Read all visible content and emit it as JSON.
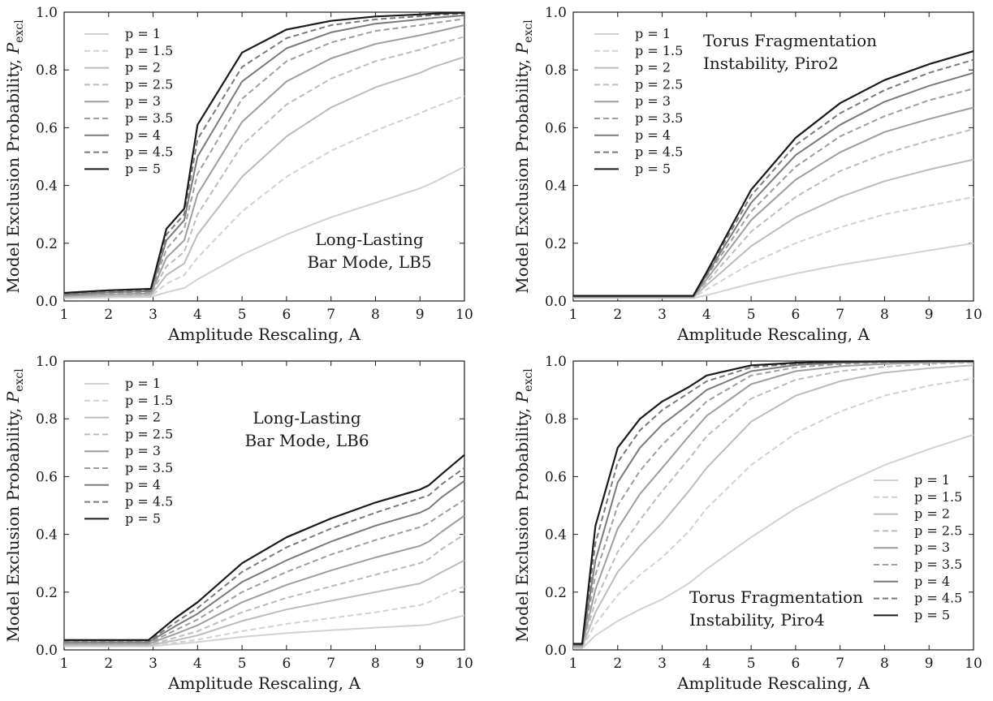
{
  "chart_data": [
    {
      "type": "line",
      "title": "",
      "annotation": [
        "Long-Lasting",
        "Bar Mode, LB5"
      ],
      "xlabel": "Amplitude Rescaling, A",
      "ylabel": "Model Exclusion Probability, ",
      "ylabel_symbol": "P",
      "ylabel_sub": "excl",
      "xlim": [
        1,
        10
      ],
      "ylim": [
        0.0,
        1.0
      ],
      "xticks": [
        "1",
        "2",
        "3",
        "4",
        "5",
        "6",
        "7",
        "8",
        "9",
        "10"
      ],
      "yticks": [
        "0.0",
        "0.2",
        "0.4",
        "0.6",
        "0.8",
        "1.0"
      ],
      "legend_position": "top-left",
      "x": [
        1,
        2,
        2.95,
        3.3,
        3.7,
        4,
        5,
        6,
        7,
        8,
        9,
        9.3,
        10
      ],
      "series": [
        {
          "name": "p = 1",
          "color": "#d2d2d2",
          "dash": "solid",
          "values": [
            0.01,
            0.012,
            0.014,
            0.03,
            0.045,
            0.075,
            0.16,
            0.23,
            0.29,
            0.34,
            0.39,
            0.41,
            0.465
          ]
        },
        {
          "name": "p = 1.5",
          "color": "#d2d2d2",
          "dash": "dashed",
          "values": [
            0.012,
            0.014,
            0.016,
            0.06,
            0.09,
            0.15,
            0.31,
            0.43,
            0.52,
            0.59,
            0.65,
            0.67,
            0.71
          ]
        },
        {
          "name": "p = 2",
          "color": "#bcbcbc",
          "dash": "solid",
          "values": [
            0.014,
            0.017,
            0.019,
            0.09,
            0.13,
            0.23,
            0.43,
            0.57,
            0.67,
            0.74,
            0.79,
            0.81,
            0.845
          ]
        },
        {
          "name": "p = 2.5",
          "color": "#bcbcbc",
          "dash": "dashed",
          "values": [
            0.016,
            0.02,
            0.022,
            0.12,
            0.17,
            0.3,
            0.54,
            0.68,
            0.77,
            0.83,
            0.87,
            0.885,
            0.915
          ]
        },
        {
          "name": "p = 3",
          "color": "#9e9e9e",
          "dash": "solid",
          "values": [
            0.018,
            0.023,
            0.026,
            0.15,
            0.21,
            0.37,
            0.62,
            0.76,
            0.84,
            0.89,
            0.92,
            0.93,
            0.955
          ]
        },
        {
          "name": "p = 3.5",
          "color": "#9e9e9e",
          "dash": "dashed",
          "values": [
            0.02,
            0.026,
            0.03,
            0.18,
            0.25,
            0.44,
            0.7,
            0.83,
            0.895,
            0.935,
            0.955,
            0.962,
            0.977
          ]
        },
        {
          "name": "p = 4",
          "color": "#7a7a7a",
          "dash": "solid",
          "values": [
            0.022,
            0.03,
            0.034,
            0.21,
            0.28,
            0.5,
            0.76,
            0.875,
            0.93,
            0.96,
            0.975,
            0.98,
            0.989
          ]
        },
        {
          "name": "p = 4.5",
          "color": "#7a7a7a",
          "dash": "dashed",
          "values": [
            0.024,
            0.034,
            0.038,
            0.23,
            0.3,
            0.56,
            0.81,
            0.91,
            0.955,
            0.975,
            0.986,
            0.99,
            0.995
          ]
        },
        {
          "name": "p = 5",
          "color": "#1a1a1a",
          "dash": "solid",
          "values": [
            0.028,
            0.037,
            0.042,
            0.25,
            0.32,
            0.61,
            0.86,
            0.94,
            0.97,
            0.985,
            0.992,
            0.995,
            0.998
          ]
        }
      ]
    },
    {
      "type": "line",
      "title": "",
      "annotation": [
        "Torus Fragmentation",
        "Instability, Piro2"
      ],
      "xlabel": "Amplitude Rescaling, A",
      "ylabel": "Model Exclusion Probability, ",
      "ylabel_symbol": "P",
      "ylabel_sub": "excl",
      "xlim": [
        1,
        10
      ],
      "ylim": [
        0.0,
        1.0
      ],
      "xticks": [
        "1",
        "2",
        "3",
        "4",
        "5",
        "6",
        "7",
        "8",
        "9",
        "10"
      ],
      "yticks": [
        "0.0",
        "0.2",
        "0.4",
        "0.6",
        "0.8",
        "1.0"
      ],
      "legend_position": "top-left",
      "x": [
        1,
        3.7,
        4,
        5,
        6,
        7,
        8,
        9,
        10
      ],
      "series": [
        {
          "name": "p = 1",
          "color": "#d2d2d2",
          "dash": "solid",
          "values": [
            0.01,
            0.01,
            0.02,
            0.06,
            0.095,
            0.125,
            0.15,
            0.175,
            0.2
          ]
        },
        {
          "name": "p = 1.5",
          "color": "#d2d2d2",
          "dash": "dashed",
          "values": [
            0.011,
            0.011,
            0.04,
            0.13,
            0.2,
            0.255,
            0.3,
            0.33,
            0.36
          ]
        },
        {
          "name": "p = 2",
          "color": "#bcbcbc",
          "dash": "solid",
          "values": [
            0.012,
            0.012,
            0.055,
            0.19,
            0.29,
            0.36,
            0.415,
            0.455,
            0.49
          ]
        },
        {
          "name": "p = 2.5",
          "color": "#bcbcbc",
          "dash": "dashed",
          "values": [
            0.013,
            0.013,
            0.065,
            0.24,
            0.36,
            0.45,
            0.51,
            0.555,
            0.595
          ]
        },
        {
          "name": "p = 3",
          "color": "#9e9e9e",
          "dash": "solid",
          "values": [
            0.014,
            0.014,
            0.075,
            0.28,
            0.42,
            0.515,
            0.585,
            0.63,
            0.67
          ]
        },
        {
          "name": "p = 3.5",
          "color": "#9e9e9e",
          "dash": "dashed",
          "values": [
            0.015,
            0.015,
            0.085,
            0.31,
            0.465,
            0.57,
            0.64,
            0.695,
            0.735
          ]
        },
        {
          "name": "p = 4",
          "color": "#7a7a7a",
          "dash": "solid",
          "values": [
            0.016,
            0.016,
            0.09,
            0.34,
            0.505,
            0.61,
            0.69,
            0.745,
            0.79
          ]
        },
        {
          "name": "p = 4.5",
          "color": "#7a7a7a",
          "dash": "dashed",
          "values": [
            0.017,
            0.017,
            0.095,
            0.365,
            0.54,
            0.65,
            0.73,
            0.79,
            0.835
          ]
        },
        {
          "name": "p = 5",
          "color": "#1a1a1a",
          "dash": "solid",
          "values": [
            0.018,
            0.018,
            0.1,
            0.385,
            0.565,
            0.685,
            0.765,
            0.82,
            0.865
          ]
        }
      ]
    },
    {
      "type": "line",
      "title": "",
      "annotation": [
        "Long-Lasting",
        "Bar Mode, LB6"
      ],
      "xlabel": "Amplitude Rescaling, A",
      "ylabel": "Model Exclusion Probability, ",
      "ylabel_symbol": "P",
      "ylabel_sub": "excl",
      "xlim": [
        1,
        10
      ],
      "ylim": [
        0.0,
        1.0
      ],
      "xticks": [
        "1",
        "2",
        "3",
        "4",
        "5",
        "6",
        "7",
        "8",
        "9",
        "10"
      ],
      "yticks": [
        "0.0",
        "0.2",
        "0.4",
        "0.6",
        "0.8",
        "1.0"
      ],
      "legend_position": "top-left",
      "x": [
        1,
        2.9,
        3.5,
        4,
        5,
        6,
        7,
        8,
        9,
        9.2,
        9.5,
        10
      ],
      "series": [
        {
          "name": "p = 1",
          "color": "#d2d2d2",
          "dash": "solid",
          "values": [
            0.012,
            0.012,
            0.02,
            0.027,
            0.045,
            0.058,
            0.068,
            0.077,
            0.085,
            0.088,
            0.1,
            0.12
          ]
        },
        {
          "name": "p = 1.5",
          "color": "#d2d2d2",
          "dash": "dashed",
          "values": [
            0.014,
            0.014,
            0.025,
            0.035,
            0.065,
            0.09,
            0.11,
            0.13,
            0.155,
            0.165,
            0.19,
            0.22
          ]
        },
        {
          "name": "p = 2",
          "color": "#bcbcbc",
          "dash": "solid",
          "values": [
            0.016,
            0.016,
            0.033,
            0.05,
            0.1,
            0.14,
            0.17,
            0.2,
            0.23,
            0.245,
            0.27,
            0.31
          ]
        },
        {
          "name": "p = 2.5",
          "color": "#bcbcbc",
          "dash": "dashed",
          "values": [
            0.018,
            0.018,
            0.042,
            0.065,
            0.13,
            0.18,
            0.22,
            0.26,
            0.3,
            0.315,
            0.35,
            0.4
          ]
        },
        {
          "name": "p = 3",
          "color": "#9e9e9e",
          "dash": "solid",
          "values": [
            0.021,
            0.021,
            0.055,
            0.085,
            0.165,
            0.225,
            0.275,
            0.32,
            0.36,
            0.375,
            0.41,
            0.465
          ]
        },
        {
          "name": "p = 3.5",
          "color": "#9e9e9e",
          "dash": "dashed",
          "values": [
            0.024,
            0.024,
            0.068,
            0.105,
            0.2,
            0.27,
            0.33,
            0.38,
            0.425,
            0.44,
            0.47,
            0.52
          ]
        },
        {
          "name": "p = 4",
          "color": "#7a7a7a",
          "dash": "solid",
          "values": [
            0.027,
            0.027,
            0.082,
            0.125,
            0.235,
            0.31,
            0.375,
            0.43,
            0.475,
            0.49,
            0.53,
            0.585
          ]
        },
        {
          "name": "p = 4.5",
          "color": "#7a7a7a",
          "dash": "dashed",
          "values": [
            0.03,
            0.03,
            0.095,
            0.145,
            0.27,
            0.355,
            0.42,
            0.475,
            0.525,
            0.535,
            0.575,
            0.63
          ]
        },
        {
          "name": "p = 5",
          "color": "#1a1a1a",
          "dash": "solid",
          "values": [
            0.034,
            0.034,
            0.11,
            0.165,
            0.3,
            0.39,
            0.455,
            0.51,
            0.555,
            0.57,
            0.61,
            0.675
          ]
        }
      ]
    },
    {
      "type": "line",
      "title": "",
      "annotation": [
        "Torus Fragmentation",
        "Instability, Piro4"
      ],
      "xlabel": "Amplitude Rescaling, A",
      "ylabel": "Model Exclusion Probability, ",
      "ylabel_symbol": "P",
      "ylabel_sub": "excl",
      "xlim": [
        1,
        10
      ],
      "ylim": [
        0.0,
        1.0
      ],
      "xticks": [
        "1",
        "2",
        "3",
        "4",
        "5",
        "6",
        "7",
        "8",
        "9",
        "10"
      ],
      "yticks": [
        "0.0",
        "0.2",
        "0.4",
        "0.6",
        "0.8",
        "1.0"
      ],
      "legend_position": "bottom-right",
      "x": [
        1,
        1.2,
        1.5,
        2,
        2.5,
        3,
        3.6,
        4,
        5,
        6,
        7,
        8,
        9,
        10
      ],
      "series": [
        {
          "name": "p = 1",
          "color": "#d2d2d2",
          "dash": "solid",
          "values": [
            0.005,
            0.005,
            0.05,
            0.1,
            0.14,
            0.175,
            0.23,
            0.28,
            0.39,
            0.49,
            0.57,
            0.64,
            0.695,
            0.745
          ]
        },
        {
          "name": "p = 1.5",
          "color": "#d2d2d2",
          "dash": "dashed",
          "values": [
            0.007,
            0.007,
            0.09,
            0.19,
            0.26,
            0.32,
            0.41,
            0.49,
            0.64,
            0.75,
            0.825,
            0.88,
            0.915,
            0.94
          ]
        },
        {
          "name": "p = 2",
          "color": "#bcbcbc",
          "dash": "solid",
          "values": [
            0.009,
            0.009,
            0.13,
            0.27,
            0.36,
            0.44,
            0.55,
            0.63,
            0.79,
            0.88,
            0.93,
            0.96,
            0.975,
            0.985
          ]
        },
        {
          "name": "p = 2.5",
          "color": "#bcbcbc",
          "dash": "dashed",
          "values": [
            0.011,
            0.011,
            0.17,
            0.34,
            0.45,
            0.55,
            0.66,
            0.74,
            0.87,
            0.935,
            0.965,
            0.98,
            0.99,
            0.995
          ]
        },
        {
          "name": "p = 3",
          "color": "#9e9e9e",
          "dash": "solid",
          "values": [
            0.013,
            0.013,
            0.21,
            0.42,
            0.54,
            0.63,
            0.74,
            0.81,
            0.92,
            0.965,
            0.982,
            0.99,
            0.995,
            0.997
          ]
        },
        {
          "name": "p = 3.5",
          "color": "#9e9e9e",
          "dash": "dashed",
          "values": [
            0.015,
            0.015,
            0.26,
            0.5,
            0.62,
            0.71,
            0.8,
            0.86,
            0.95,
            0.978,
            0.99,
            0.995,
            0.997,
            0.998
          ]
        },
        {
          "name": "p = 4",
          "color": "#7a7a7a",
          "dash": "solid",
          "values": [
            0.017,
            0.017,
            0.31,
            0.58,
            0.7,
            0.78,
            0.85,
            0.9,
            0.965,
            0.986,
            0.994,
            0.997,
            0.998,
            0.999
          ]
        },
        {
          "name": "p = 4.5",
          "color": "#7a7a7a",
          "dash": "dashed",
          "values": [
            0.019,
            0.019,
            0.37,
            0.65,
            0.76,
            0.83,
            0.89,
            0.93,
            0.978,
            0.991,
            0.996,
            0.998,
            0.999,
            1.0
          ]
        },
        {
          "name": "p = 5",
          "color": "#1a1a1a",
          "dash": "solid",
          "values": [
            0.021,
            0.021,
            0.43,
            0.7,
            0.8,
            0.86,
            0.91,
            0.95,
            0.985,
            0.994,
            0.998,
            0.999,
            1.0,
            1.0
          ]
        }
      ]
    }
  ]
}
